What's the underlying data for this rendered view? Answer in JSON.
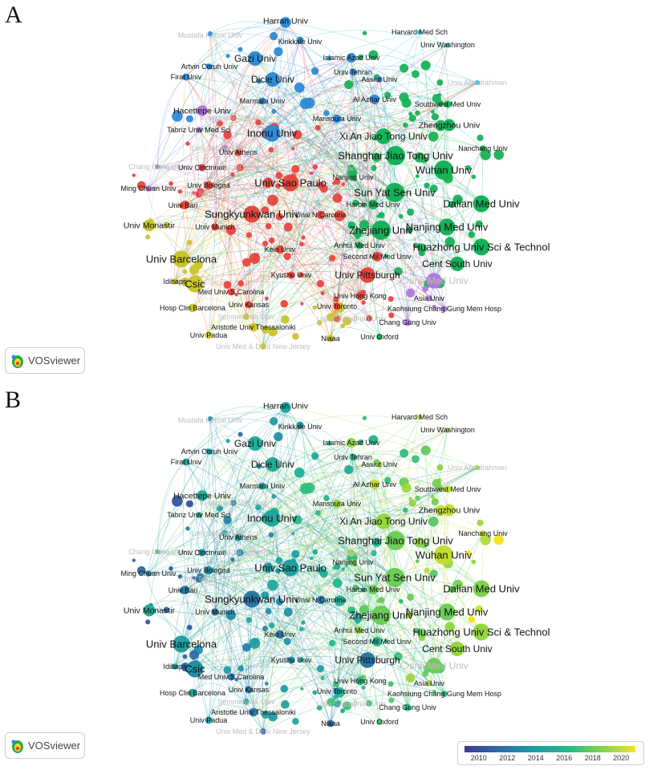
{
  "panels": [
    {
      "letter": "A",
      "legend": null
    },
    {
      "letter": "B",
      "legend": {
        "ticks": [
          "2010",
          "2012",
          "2014",
          "2016",
          "2018",
          "2020"
        ],
        "range": [
          2009,
          2021
        ]
      }
    }
  ],
  "watermark": "VOSviewer",
  "clusters": {
    "red": "#e8463f",
    "green": "#17b257",
    "blue": "#2e8bd6",
    "yellow": "#c9c52a",
    "purple": "#b07ad8",
    "cyan": "#2bc7d8"
  },
  "nodes": [
    {
      "label": "Harran Univ",
      "c": "blue",
      "yr": 2014.5,
      "s": 9
    },
    {
      "label": "Kirikkale Univ",
      "c": "blue",
      "yr": 2013.5,
      "s": 6
    },
    {
      "label": "Mustafa Kemal Univ",
      "c": "blue",
      "yr": 2013,
      "s": 4,
      "faint": true
    },
    {
      "label": "Gazi Univ",
      "c": "blue",
      "yr": 2015,
      "s": 12
    },
    {
      "label": "Islamic Azad Univ",
      "c": "blue",
      "yr": 2019,
      "s": 8
    },
    {
      "label": "Harvard Med Sch",
      "c": "cyan",
      "yr": 2019,
      "s": 4
    },
    {
      "label": "Artvin Coruh Univ",
      "c": "blue",
      "yr": 2013.5,
      "s": 5
    },
    {
      "label": "Univ Washington",
      "c": "cyan",
      "yr": 2019,
      "s": 4
    },
    {
      "label": "Univ Tehran",
      "c": "blue",
      "yr": 2016,
      "s": 6
    },
    {
      "label": "Firat Univ",
      "c": "blue",
      "yr": 2014,
      "s": 6
    },
    {
      "label": "Dicle Univ",
      "c": "blue",
      "yr": 2015,
      "s": 12
    },
    {
      "label": "Assiut Univ",
      "c": "blue",
      "yr": 2019.5,
      "s": 5
    },
    {
      "label": "Marmara Univ",
      "c": "blue",
      "yr": 2014,
      "s": 6
    },
    {
      "label": "Univ Abdulrahman",
      "c": "cyan",
      "yr": 2019,
      "s": 4,
      "faint": true
    },
    {
      "label": "Al Azhar Univ",
      "c": "blue",
      "yr": 2020,
      "s": 8
    },
    {
      "label": "Southwest Med Univ",
      "c": "green",
      "yr": 2020,
      "s": 6
    },
    {
      "label": "Hacettepe Univ",
      "c": "purple",
      "yr": 2015,
      "s": 9
    },
    {
      "label": "Kyungpook Natl Univ",
      "c": "red",
      "yr": 2012.5,
      "s": 5,
      "faint": true
    },
    {
      "label": "Mansoura Univ",
      "c": "blue",
      "yr": 2019,
      "s": 7
    },
    {
      "label": "Zhengzhou Univ",
      "c": "green",
      "yr": 2020,
      "s": 10
    },
    {
      "label": "Tabriz Univ Med Sci",
      "c": "purple",
      "yr": 2015,
      "s": 5
    },
    {
      "label": "Inonu Univ",
      "c": "blue",
      "yr": 2014.5,
      "s": 14
    },
    {
      "label": "Xi An Jiao Tong Univ",
      "c": "green",
      "yr": 2019,
      "s": 13
    },
    {
      "label": "Nanchang Univ",
      "c": "green",
      "yr": 2020,
      "s": 5
    },
    {
      "label": "Univ Tehran Med Sci",
      "c": "purple",
      "yr": 2015,
      "s": 5,
      "faint": true
    },
    {
      "label": "Univ Athens",
      "c": "red",
      "yr": 2013,
      "s": 6
    },
    {
      "label": "Shanghai Jiao Tong Univ",
      "c": "green",
      "yr": 2018,
      "s": 16
    },
    {
      "label": "Chang Gung Univ",
      "c": "purple",
      "yr": 2017,
      "s": 4,
      "faint": true
    },
    {
      "label": "Univ Cincinnati",
      "c": "red",
      "yr": 2013,
      "s": 6
    },
    {
      "label": "Univ Coll London",
      "c": "red",
      "yr": 2013,
      "s": 6,
      "faint": true
    },
    {
      "label": "Sichuan Univ",
      "c": "green",
      "yr": 2019,
      "s": 6,
      "faint": true
    },
    {
      "label": "Wuhan Univ",
      "c": "green",
      "yr": 2020,
      "s": 16
    },
    {
      "label": "Ming Chuan Univ",
      "c": "purple",
      "yr": 2013,
      "s": 5
    },
    {
      "label": "Univ Bologna",
      "c": "red",
      "yr": 2013,
      "s": 7
    },
    {
      "label": "Univ Sao Paulo",
      "c": "red",
      "yr": 2014,
      "s": 14
    },
    {
      "label": "Nanjing Univ",
      "c": "green",
      "yr": 2018,
      "s": 6
    },
    {
      "label": "Univ Texas",
      "c": "red",
      "yr": 2012,
      "s": 6,
      "faint": true
    },
    {
      "label": "Sun Yat Sen Univ",
      "c": "green",
      "yr": 2018,
      "s": 16
    },
    {
      "label": "Univ Bari",
      "c": "red",
      "yr": 2012,
      "s": 6
    },
    {
      "label": "Harbin Med Univ",
      "c": "green",
      "yr": 2018,
      "s": 8
    },
    {
      "label": "Dalian Med Univ",
      "c": "green",
      "yr": 2018.5,
      "s": 14
    },
    {
      "label": "Sungkyunkwan Univ",
      "c": "red",
      "yr": 2012,
      "s": 14
    },
    {
      "label": "Univ N Carolina",
      "c": "red",
      "yr": 2012,
      "s": 7
    },
    {
      "label": "Univ Monastir",
      "c": "yellow",
      "yr": 2015,
      "s": 10
    },
    {
      "label": "Univ Munich",
      "c": "red",
      "yr": 2012,
      "s": 6
    },
    {
      "label": "Zhejiang Univ",
      "c": "green",
      "yr": 2018,
      "s": 16
    },
    {
      "label": "Nanjing Med Univ",
      "c": "green",
      "yr": 2018,
      "s": 14
    },
    {
      "label": "Anhui Med Univ",
      "c": "green",
      "yr": 2019,
      "s": 6
    },
    {
      "label": "Huazhong Univ Sci & Technol",
      "c": "green",
      "yr": 2019,
      "s": 14
    },
    {
      "label": "Univ Barcelona",
      "c": "yellow",
      "yr": 2014,
      "s": 14
    },
    {
      "label": "Keio Univ",
      "c": "red",
      "yr": 2012,
      "s": 7
    },
    {
      "label": "Second Mil Med Univ",
      "c": "red",
      "yr": 2016,
      "s": 8
    },
    {
      "label": "Cent South Univ",
      "c": "green",
      "yr": 2019,
      "s": 12
    },
    {
      "label": "Kyushu Univ",
      "c": "red",
      "yr": 2013,
      "s": 6
    },
    {
      "label": "Univ Pittsburgh",
      "c": "red",
      "yr": 2012,
      "s": 13
    },
    {
      "label": "Csic",
      "c": "yellow",
      "yr": 2013,
      "s": 14
    },
    {
      "label": "China Med Univ",
      "c": "purple",
      "yr": 2018,
      "s": 13,
      "faint": true
    },
    {
      "label": "Idibaps",
      "c": "yellow",
      "yr": 2014,
      "s": 5
    },
    {
      "label": "Med Univ S Carolina",
      "c": "red",
      "yr": 2012,
      "s": 6
    },
    {
      "label": "Univ Hong Kong",
      "c": "red",
      "yr": 2016,
      "s": 7
    },
    {
      "label": "Asia Univ",
      "c": "purple",
      "yr": 2019,
      "s": 5
    },
    {
      "label": "Univ Kansas",
      "c": "red",
      "yr": 2012,
      "s": 6
    },
    {
      "label": "Univ Toronto",
      "c": "red",
      "yr": 2013,
      "s": 6
    },
    {
      "label": "Hosp Clin Barcelona",
      "c": "yellow",
      "yr": 2014,
      "s": 7
    },
    {
      "label": "Semmelweis Univ",
      "c": "yellow",
      "yr": 2014,
      "s": 5,
      "faint": true
    },
    {
      "label": "Univ Sydney",
      "c": "red",
      "yr": 2014,
      "s": 5,
      "faint": true
    },
    {
      "label": "Jinan Univ",
      "c": "red",
      "yr": 2017,
      "s": 5,
      "faint": true
    },
    {
      "label": "Kaohsiung Chang Gung Mem Hosp",
      "c": "purple",
      "yr": 2016,
      "s": 5
    },
    {
      "label": "Aristotle Univ Thessaloniki",
      "c": "yellow",
      "yr": 2012,
      "s": 7
    },
    {
      "label": "Chang Gung Univ",
      "c": "purple",
      "yr": 2016,
      "s": 6
    },
    {
      "label": "Univ Padua",
      "c": "yellow",
      "yr": 2014,
      "s": 6
    },
    {
      "label": "Niaaa",
      "c": "yellow",
      "yr": 2012,
      "s": 6
    },
    {
      "label": "Univ Oxford",
      "c": "green",
      "yr": 2017,
      "s": 5
    },
    {
      "label": "Univ Med & Dent New Jersey",
      "c": "yellow",
      "yr": 2011,
      "s": 5,
      "faint": true
    }
  ]
}
